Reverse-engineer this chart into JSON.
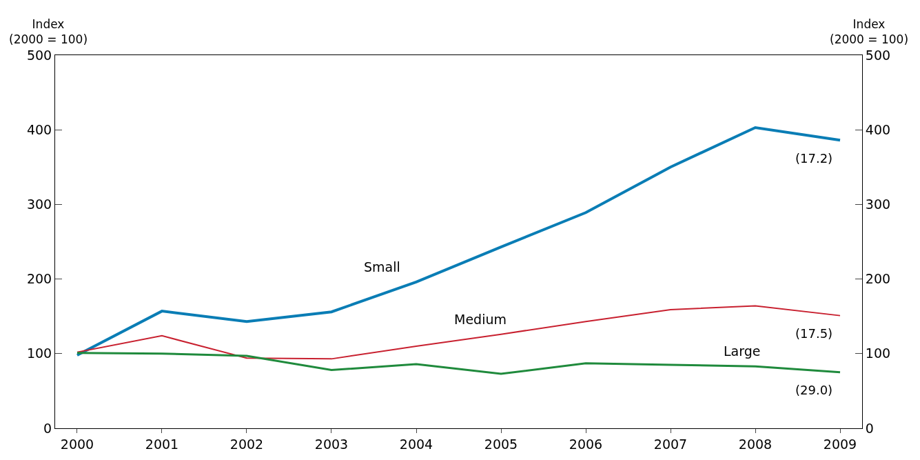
{
  "chart_data": {
    "type": "line",
    "ylabel": "Index\n(2000 = 100)",
    "y2label": "Index\n(2000 = 100)",
    "x": [
      2000,
      2001,
      2002,
      2003,
      2004,
      2005,
      2006,
      2007,
      2008,
      2009
    ],
    "series": [
      {
        "name": "Small",
        "color": "#0a7db5",
        "values": [
          98,
          157,
          143,
          156,
          196,
          243,
          289,
          350,
          403,
          386
        ]
      },
      {
        "name": "Medium",
        "color": "#c8202f",
        "values": [
          102,
          124,
          94,
          93,
          110,
          126,
          143,
          159,
          164,
          151
        ]
      },
      {
        "name": "Large",
        "color": "#1f8a3c",
        "values": [
          101,
          100,
          97,
          78,
          86,
          73,
          87,
          85,
          83,
          75
        ]
      }
    ],
    "annotations": [
      "(17.2)",
      "(17.5)",
      "(29.0)"
    ],
    "xlim": [
      1999.74,
      2009.26
    ],
    "xticks": [
      2000,
      2001,
      2002,
      2003,
      2004,
      2005,
      2006,
      2007,
      2008,
      2009
    ],
    "ylim": [
      0,
      500
    ],
    "yticks": [
      0,
      100,
      200,
      300,
      400,
      500
    ],
    "y2lim": [
      0,
      500
    ],
    "y2ticks": [
      0,
      100,
      200,
      300,
      400,
      500
    ],
    "legend": false,
    "marker": "none",
    "line_style": "solid"
  }
}
